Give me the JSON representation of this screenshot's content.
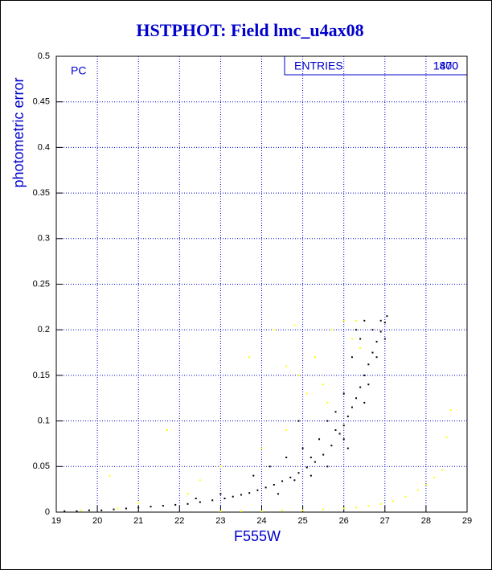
{
  "chart_data": {
    "type": "scatter",
    "title": "HSTPHOT: Field lmc_u4ax08",
    "x_label": "F555W",
    "y_label": "photometric error",
    "annotation": "PC",
    "stats_label": "ENTRIES",
    "stats_values": [
      "1800",
      "1470"
    ],
    "xlim": [
      19,
      29
    ],
    "ylim": [
      0,
      0.5
    ],
    "xticks": [
      19,
      20,
      21,
      22,
      23,
      24,
      25,
      26,
      27,
      28,
      29
    ],
    "yticks": [
      0,
      0.05,
      0.1,
      0.15,
      0.2,
      0.25,
      0.3,
      0.35,
      0.4,
      0.45,
      0.5
    ],
    "grid": true,
    "series": [
      {
        "color": "#000000",
        "x": [
          19.2,
          19.5,
          19.8,
          20.1,
          20.4,
          20.7,
          21.0,
          21.3,
          21.6,
          21.9,
          22.2,
          22.5,
          22.8,
          23.1,
          23.3,
          23.5,
          23.7,
          23.9,
          24.1,
          24.3,
          24.5,
          24.7,
          24.9,
          25.1,
          25.3,
          25.5,
          25.7,
          25.9,
          26.0,
          26.1,
          26.2,
          26.3,
          26.4,
          26.5,
          26.6,
          26.7,
          26.8,
          26.9,
          27.0,
          27.05,
          24.2,
          24.6,
          25.0,
          25.4,
          25.6,
          25.8,
          26.0,
          26.2,
          26.3,
          26.5,
          26.7,
          26.4,
          26.6,
          26.8,
          26.9,
          27.0,
          24.4,
          24.8,
          25.2,
          25.6,
          23.8,
          24.9,
          25.2,
          26.0,
          23.0,
          22.4,
          25.8,
          26.1,
          26.5
        ],
        "values": [
          0.001,
          0.001,
          0.002,
          0.002,
          0.003,
          0.004,
          0.005,
          0.006,
          0.007,
          0.008,
          0.009,
          0.011,
          0.013,
          0.015,
          0.017,
          0.019,
          0.021,
          0.024,
          0.027,
          0.03,
          0.034,
          0.038,
          0.043,
          0.049,
          0.055,
          0.063,
          0.073,
          0.086,
          0.095,
          0.105,
          0.115,
          0.125,
          0.137,
          0.15,
          0.162,
          0.175,
          0.187,
          0.198,
          0.208,
          0.215,
          0.05,
          0.06,
          0.07,
          0.08,
          0.1,
          0.11,
          0.13,
          0.17,
          0.2,
          0.21,
          0.2,
          0.19,
          0.14,
          0.17,
          0.21,
          0.19,
          0.02,
          0.035,
          0.04,
          0.05,
          0.04,
          0.1,
          0.06,
          0.08,
          0.02,
          0.015,
          0.09,
          0.07,
          0.12
        ]
      },
      {
        "color": "#ffff00",
        "x": [
          23.0,
          23.5,
          24.0,
          24.5,
          25.0,
          25.5,
          26.0,
          26.3,
          26.6,
          26.9,
          27.2,
          27.5,
          27.8,
          28.0,
          28.2,
          28.4,
          28.5,
          28.6,
          19.6,
          20.5,
          21.0,
          24.3,
          24.6,
          24.9,
          25.1,
          25.3,
          25.5,
          25.7,
          26.0,
          26.2,
          26.4,
          25.6,
          24.6,
          24.0,
          23.0,
          22.5,
          22.2,
          23.7,
          24.8,
          26.3,
          20.3,
          21.7
        ],
        "values": [
          0.001,
          0.001,
          0.001,
          0.002,
          0.002,
          0.003,
          0.004,
          0.005,
          0.007,
          0.009,
          0.012,
          0.017,
          0.024,
          0.03,
          0.038,
          0.046,
          0.082,
          0.112,
          0.002,
          0.004,
          0.01,
          0.2,
          0.16,
          0.15,
          0.13,
          0.17,
          0.14,
          0.2,
          0.21,
          0.19,
          0.18,
          0.12,
          0.09,
          0.07,
          0.05,
          0.035,
          0.02,
          0.17,
          0.205,
          0.21,
          0.04,
          0.09
        ]
      }
    ]
  }
}
